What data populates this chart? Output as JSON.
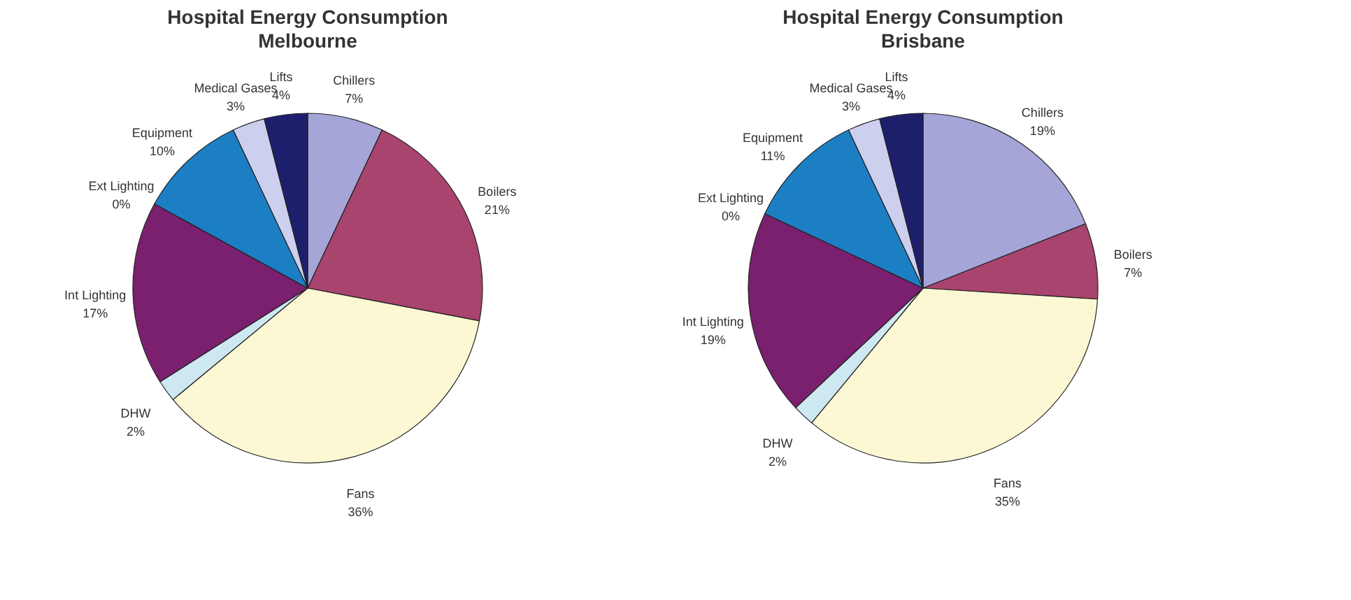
{
  "chart_data": [
    {
      "type": "pie",
      "title": "Hospital Energy Consumption",
      "subtitle": "Melbourne",
      "categories": [
        "Chillers",
        "Boilers",
        "Fans",
        "DHW",
        "Int Lighting",
        "Ext Lighting",
        "Equipment",
        "Medical Gases",
        "Lifts"
      ],
      "values": [
        7,
        21,
        36,
        2,
        17,
        0,
        10,
        3,
        4
      ],
      "value_labels": [
        "7%",
        "21%",
        "36%",
        "2%",
        "17%",
        "0%",
        "10%",
        "3%",
        "4%"
      ],
      "colors": [
        "#a5a5d8",
        "#a8446e",
        "#fbf8d3",
        "#cde8f0",
        "#7b1f6f",
        "#1f6fa8",
        "#1c7fc4",
        "#ccd0ee",
        "#1e1f6c"
      ],
      "legend": false
    },
    {
      "type": "pie",
      "title": "Hospital Energy Consumption",
      "subtitle": "Brisbane",
      "categories": [
        "Chillers",
        "Boilers",
        "Fans",
        "DHW",
        "Int Lighting",
        "Ext Lighting",
        "Equipment",
        "Medical Gases",
        "Lifts"
      ],
      "values": [
        19,
        7,
        35,
        2,
        19,
        0,
        11,
        3,
        4
      ],
      "value_labels": [
        "19%",
        "7%",
        "35%",
        "2%",
        "19%",
        "0%",
        "11%",
        "3%",
        "4%"
      ],
      "colors": [
        "#a5a5d8",
        "#a8446e",
        "#fbf8d3",
        "#cde8f0",
        "#7b1f6f",
        "#1f6fa8",
        "#1c7fc4",
        "#ccd0ee",
        "#1e1f6c"
      ],
      "legend": false
    }
  ]
}
